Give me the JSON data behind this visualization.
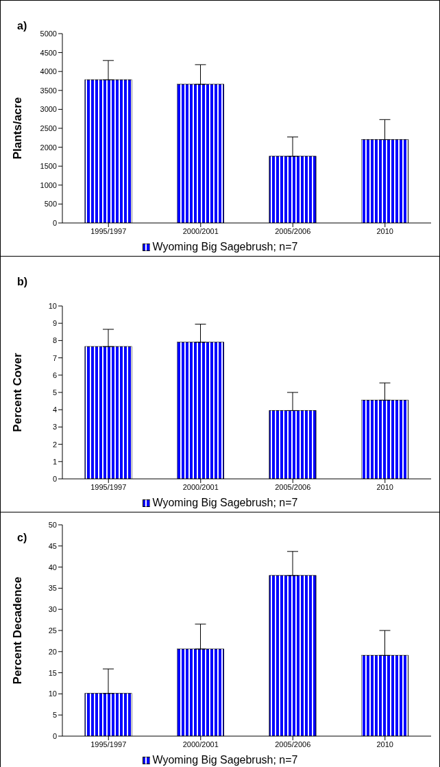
{
  "chart_data": [
    {
      "type": "bar",
      "title": "a)",
      "ylabel": "Plants/acre",
      "categories": [
        "1995/1997",
        "2000/2001",
        "2005/2006",
        "2010"
      ],
      "series": [
        {
          "name": "Wyoming Big Sagebrush; n=7",
          "color": "#0000ff",
          "values": [
            3780,
            3660,
            1760,
            2200
          ],
          "errors": [
            [
              3780,
              4290
            ],
            [
              3660,
              4180
            ],
            [
              1760,
              2270
            ],
            [
              2200,
              2730
            ]
          ]
        }
      ],
      "ylim": [
        0,
        5000
      ],
      "yticks": [
        0,
        500,
        1000,
        1500,
        2000,
        2500,
        3000,
        3500,
        4000,
        4500,
        5000
      ],
      "grid": false,
      "legend": "bottom"
    },
    {
      "type": "bar",
      "title": "b)",
      "ylabel": "Percent Cover",
      "categories": [
        "1995/1997",
        "2000/2001",
        "2005/2006",
        "2010"
      ],
      "series": [
        {
          "name": "Wyoming Big Sagebrush; n=7",
          "color": "#0000ff",
          "values": [
            7.65,
            7.9,
            3.95,
            4.55
          ],
          "errors": [
            [
              7.65,
              8.65
            ],
            [
              7.9,
              8.95
            ],
            [
              3.95,
              5.0
            ],
            [
              4.55,
              5.55
            ]
          ]
        }
      ],
      "ylim": [
        0,
        10
      ],
      "yticks": [
        0,
        1,
        2,
        3,
        4,
        5,
        6,
        7,
        8,
        9,
        10
      ],
      "grid": false,
      "legend": "bottom"
    },
    {
      "type": "bar",
      "title": "c)",
      "ylabel": "Percent Decadence",
      "categories": [
        "1995/1997",
        "2000/2001",
        "2005/2006",
        "2010"
      ],
      "series": [
        {
          "name": "Wyoming Big Sagebrush; n=7",
          "color": "#0000ff",
          "values": [
            10.1,
            20.6,
            38,
            19.1
          ],
          "errors": [
            [
              10.1,
              15.9
            ],
            [
              20.6,
              26.5
            ],
            [
              38,
              43.7
            ],
            [
              19.1,
              25.0
            ]
          ]
        }
      ],
      "ylim": [
        0,
        50
      ],
      "yticks": [
        0,
        5,
        10,
        15,
        20,
        25,
        30,
        35,
        40,
        45,
        50
      ],
      "grid": false,
      "legend": "bottom"
    }
  ]
}
